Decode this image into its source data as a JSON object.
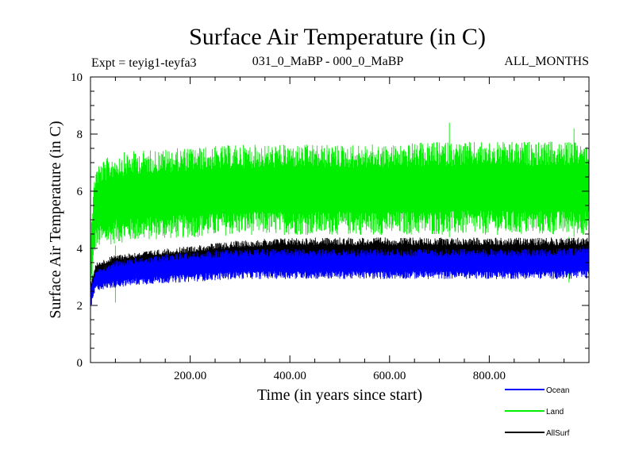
{
  "chart_data": {
    "type": "line",
    "title": "Surface Air Temperature (in C)",
    "subtitle_left": "Expt = teyig1-teyfa3",
    "subtitle_center": "031_0_MaBP - 000_0_MaBP",
    "subtitle_right": "ALL_MONTHS",
    "xlabel": "Time (in years since start)",
    "ylabel": "Surface Air Temperature (in C)",
    "xlim": [
      0,
      1000
    ],
    "ylim": [
      0,
      10
    ],
    "x_ticks": [
      200,
      400,
      600,
      800
    ],
    "x_tick_labels": [
      "200.00",
      "400.00",
      "600.00",
      "800.00"
    ],
    "y_ticks": [
      0,
      2,
      4,
      6,
      8,
      10
    ],
    "y_tick_labels": [
      "0",
      "2",
      "4",
      "6",
      "8",
      "10"
    ],
    "legend_position": "bottom-right",
    "series": [
      {
        "name": "Land",
        "color": "#00ee00",
        "band_x": [
          0,
          10,
          50,
          100,
          200,
          300,
          400,
          500,
          600,
          700,
          800,
          900,
          1000
        ],
        "band_low": [
          2.2,
          3.9,
          4.1,
          4.2,
          4.3,
          4.4,
          4.4,
          4.4,
          4.4,
          4.4,
          4.4,
          4.4,
          4.4
        ],
        "band_high": [
          5.0,
          7.0,
          7.4,
          7.5,
          7.6,
          7.7,
          7.7,
          7.7,
          7.7,
          7.8,
          7.8,
          7.8,
          7.8
        ],
        "extremes": [
          {
            "x": 50,
            "y": 2.1
          },
          {
            "x": 720,
            "y": 8.4
          },
          {
            "x": 970,
            "y": 8.2
          },
          {
            "x": 960,
            "y": 2.8
          }
        ]
      },
      {
        "name": "AllSurf",
        "color": "#000000",
        "band_x": [
          0,
          10,
          50,
          100,
          200,
          300,
          400,
          500,
          600,
          700,
          800,
          900,
          1000
        ],
        "band_low": [
          2.0,
          2.8,
          3.0,
          3.1,
          3.2,
          3.3,
          3.3,
          3.3,
          3.3,
          3.3,
          3.3,
          3.3,
          3.3
        ],
        "band_high": [
          2.8,
          3.5,
          3.8,
          3.9,
          4.1,
          4.3,
          4.4,
          4.4,
          4.4,
          4.4,
          4.4,
          4.4,
          4.4
        ],
        "extremes": []
      },
      {
        "name": "Ocean",
        "color": "#0000ff",
        "band_x": [
          0,
          10,
          50,
          100,
          200,
          300,
          400,
          500,
          600,
          700,
          800,
          900,
          1000
        ],
        "band_low": [
          1.8,
          2.5,
          2.6,
          2.7,
          2.8,
          2.9,
          2.9,
          2.9,
          2.9,
          2.9,
          2.9,
          2.9,
          2.9
        ],
        "band_high": [
          2.6,
          3.3,
          3.6,
          3.7,
          3.9,
          4.0,
          4.0,
          4.0,
          4.0,
          4.0,
          4.0,
          4.0,
          4.1
        ],
        "extremes": []
      }
    ],
    "legend_order": [
      "Ocean",
      "Land",
      "AllSurf"
    ]
  }
}
